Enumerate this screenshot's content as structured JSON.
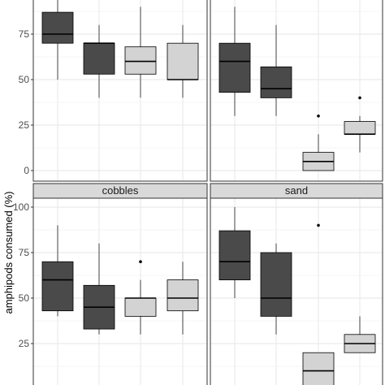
{
  "colors": {
    "panel_bg": "#ffffff",
    "grid": "#ebebeb",
    "panel_border": "#333333",
    "strip_bg": "#d9d9d9",
    "dark_fill": "#4a4a4a",
    "light_fill": "#d3d3d3",
    "line": "#000000"
  },
  "chart_data": {
    "type": "boxplot",
    "ylabel": "amphipods consumed (%)",
    "ylim": [
      -5,
      100
    ],
    "yticks": [
      0,
      25,
      50,
      75,
      100
    ],
    "grid": true,
    "facets": [
      {
        "name": "",
        "show_strip": false,
        "yticks": [
          0,
          25,
          50,
          75
        ],
        "boxes": [
          {
            "group": 1,
            "fill": "dark",
            "whisker_low": 50,
            "q1": 70,
            "median": 75,
            "q3": 87,
            "whisker_high": 100,
            "outliers": []
          },
          {
            "group": 2,
            "fill": "dark",
            "whisker_low": 40,
            "q1": 53,
            "median": 70,
            "q3": 70,
            "whisker_high": 80,
            "outliers": []
          },
          {
            "group": 3,
            "fill": "light",
            "whisker_low": 40,
            "q1": 53,
            "median": 60,
            "q3": 68,
            "whisker_high": 90,
            "outliers": []
          },
          {
            "group": 4,
            "fill": "light",
            "whisker_low": 40,
            "q1": 50,
            "median": 50,
            "q3": 70,
            "whisker_high": 80,
            "outliers": []
          }
        ]
      },
      {
        "name": "",
        "show_strip": false,
        "yticks": [],
        "boxes": [
          {
            "group": 1,
            "fill": "dark",
            "whisker_low": 30,
            "q1": 43,
            "median": 60,
            "q3": 70,
            "whisker_high": 90,
            "outliers": []
          },
          {
            "group": 2,
            "fill": "dark",
            "whisker_low": 30,
            "q1": 40,
            "median": 45,
            "q3": 57,
            "whisker_high": 80,
            "outliers": []
          },
          {
            "group": 3,
            "fill": "light",
            "whisker_low": 0,
            "q1": 0,
            "median": 5,
            "q3": 10,
            "whisker_high": 20,
            "outliers": [
              30
            ]
          },
          {
            "group": 4,
            "fill": "light",
            "whisker_low": 10,
            "q1": 20,
            "median": 20,
            "q3": 27,
            "whisker_high": 30,
            "outliers": [
              40
            ]
          }
        ]
      },
      {
        "name": "cobbles",
        "show_strip": true,
        "yticks": [
          25,
          50,
          75,
          100
        ],
        "boxes": [
          {
            "group": 1,
            "fill": "dark",
            "whisker_low": 40,
            "q1": 43,
            "median": 60,
            "q3": 70,
            "whisker_high": 90,
            "outliers": []
          },
          {
            "group": 2,
            "fill": "dark",
            "whisker_low": 30,
            "q1": 33,
            "median": 45,
            "q3": 57,
            "whisker_high": 80,
            "outliers": []
          },
          {
            "group": 3,
            "fill": "light",
            "whisker_low": 30,
            "q1": 40,
            "median": 50,
            "q3": 50,
            "whisker_high": 60,
            "outliers": [
              70
            ]
          },
          {
            "group": 4,
            "fill": "light",
            "whisker_low": 30,
            "q1": 43,
            "median": 50,
            "q3": 60,
            "whisker_high": 70,
            "outliers": []
          }
        ]
      },
      {
        "name": "sand",
        "show_strip": true,
        "yticks": [],
        "boxes": [
          {
            "group": 1,
            "fill": "dark",
            "whisker_low": 50,
            "q1": 60,
            "median": 70,
            "q3": 87,
            "whisker_high": 100,
            "outliers": []
          },
          {
            "group": 2,
            "fill": "dark",
            "whisker_low": 30,
            "q1": 40,
            "median": 50,
            "q3": 75,
            "whisker_high": 80,
            "outliers": []
          },
          {
            "group": 3,
            "fill": "light",
            "whisker_low": 0,
            "q1": 0,
            "median": 10,
            "q3": 20,
            "whisker_high": 20,
            "outliers": [
              90
            ]
          },
          {
            "group": 4,
            "fill": "light",
            "whisker_low": 20,
            "q1": 20,
            "median": 25,
            "q3": 30,
            "whisker_high": 40,
            "outliers": []
          }
        ]
      }
    ]
  }
}
